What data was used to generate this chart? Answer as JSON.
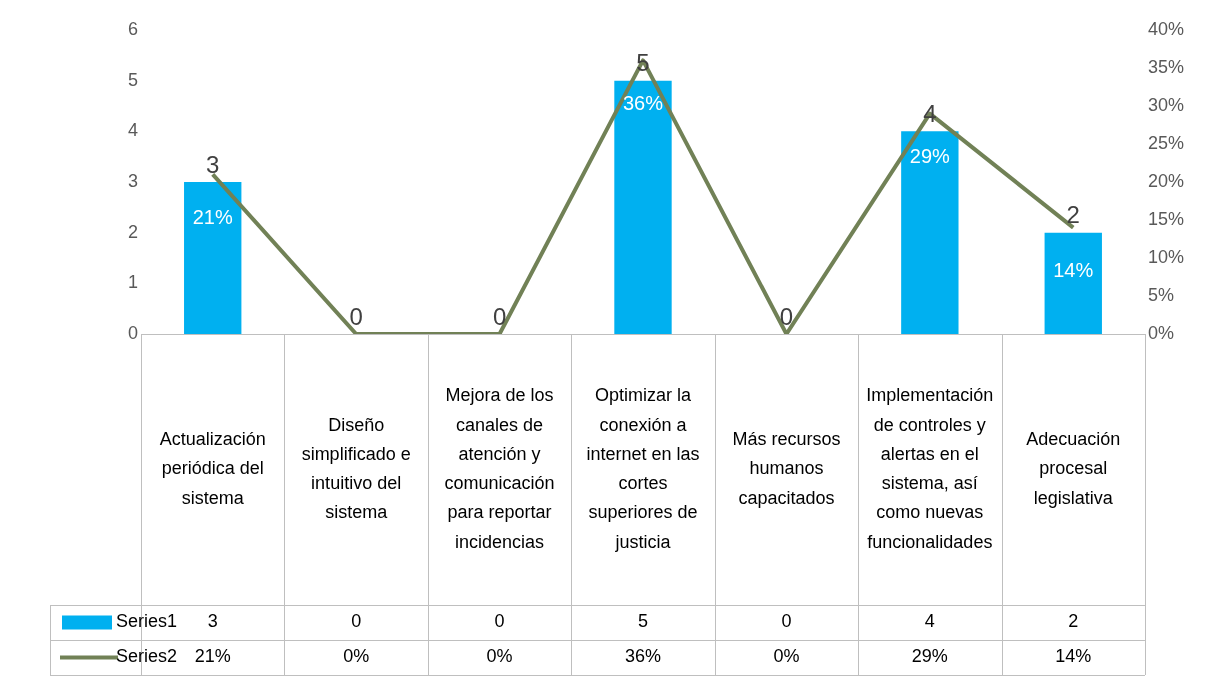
{
  "chart_data": {
    "type": "bar",
    "categories": [
      "Actualización periódica del sistema",
      "Diseño simplificado e intuitivo del sistema",
      "Mejora de los canales de atención y comunicación para reportar incidencias",
      "Optimizar la conexión a internet en las cortes superiores de justicia",
      "Más recursos humanos capacitados",
      "Implementación de controles y alertas en el sistema, así como nuevas funcionalidades",
      "Adecuación procesal legislativa"
    ],
    "series": [
      {
        "name": "Series1",
        "color": "#00b0f0",
        "values": [
          3,
          0,
          0,
          5,
          0,
          4,
          2
        ],
        "value_labels": [
          "3",
          "0",
          "0",
          "5",
          "0",
          "4",
          "2"
        ]
      },
      {
        "name": "Series2",
        "type": "line",
        "axis": "y2",
        "color": "#718156",
        "values": [
          21,
          0,
          0,
          36,
          0,
          29,
          14
        ],
        "value_labels": [
          "21%",
          "0%",
          "0%",
          "36%",
          "0%",
          "29%",
          "14%"
        ]
      }
    ],
    "ylim": [
      0,
      6
    ],
    "yticks": [
      0,
      1,
      2,
      3,
      4,
      5,
      6
    ],
    "y2lim": [
      0,
      40
    ],
    "y2ticks": [
      {
        "value": 0,
        "label": "0%"
      },
      {
        "value": 5,
        "label": "5%"
      },
      {
        "value": 10,
        "label": "10%"
      },
      {
        "value": 15,
        "label": "15%"
      },
      {
        "value": 20,
        "label": "20%"
      },
      {
        "value": 25,
        "label": "25%"
      },
      {
        "value": 30,
        "label": "30%"
      },
      {
        "value": 35,
        "label": "35%"
      },
      {
        "value": 40,
        "label": "40%"
      }
    ],
    "legend": "bottom",
    "data_labels": true,
    "marker": "none"
  }
}
